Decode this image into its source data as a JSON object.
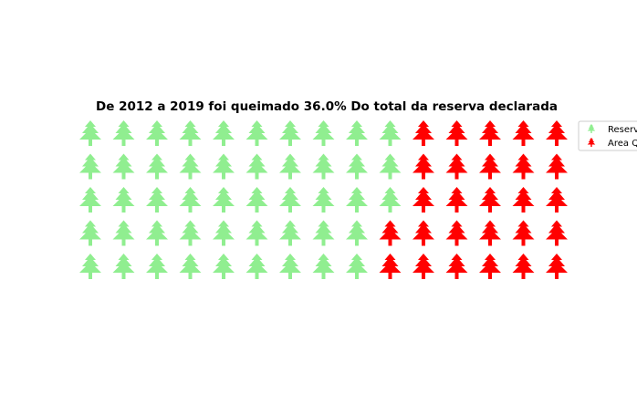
{
  "chart_data": {
    "type": "waffle",
    "title": "De 2012 a 2019 foi queimado 36.0% Do total da reserva declarada",
    "rows": 5,
    "columns": 15,
    "fill_order": "column-major, left to right",
    "categories": [
      "Reserva",
      "Area Queimada"
    ],
    "values": [
      48,
      27
    ],
    "colors": [
      "#90ee90",
      "#ff0000"
    ],
    "icon": "tree-icon",
    "legend": {
      "position": "right",
      "labels": [
        "Reserv",
        "Area Q"
      ]
    }
  }
}
